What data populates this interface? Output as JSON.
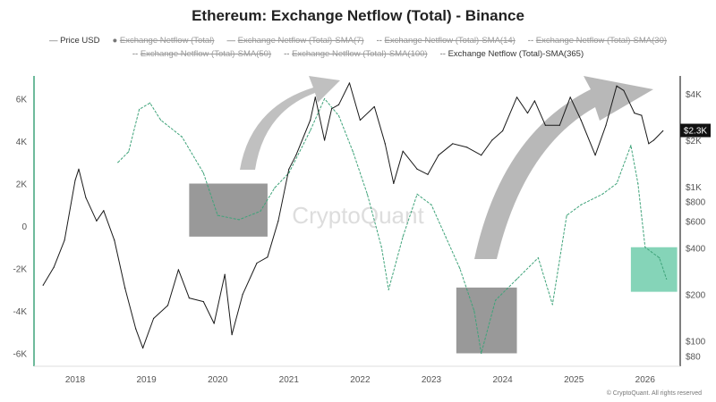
{
  "title": "Ethereum: Exchange Netflow (Total) - Binance",
  "legend": [
    {
      "label": "Price USD",
      "active": true,
      "marker": "line"
    },
    {
      "label": "Exchange Netflow (Total)",
      "active": false,
      "marker": "dot"
    },
    {
      "label": "Exchange Netflow (Total)-SMA(7)",
      "active": false,
      "marker": "line"
    },
    {
      "label": "Exchange Netflow (Total)-SMA(14)",
      "active": false,
      "marker": "dotted"
    },
    {
      "label": "Exchange Netflow (Total)-SMA(30)",
      "active": false,
      "marker": "dashed"
    },
    {
      "label": "Exchange Netflow (Total)-SMA(50)",
      "active": false,
      "marker": "dashed"
    },
    {
      "label": "Exchange Netflow (Total)-SMA(100)",
      "active": false,
      "marker": "dashed"
    },
    {
      "label": "Exchange Netflow (Total)-SMA(365)",
      "active": true,
      "marker": "dashed"
    }
  ],
  "watermark": "CryptoQuant",
  "footer": "© CryptoQuant. All rights reserved",
  "price_badge": "$2.3K",
  "colors": {
    "price": "#1a1a1a",
    "sma365": "#3fa37a",
    "box_gray": "#808080",
    "box_green": "#5cc6a0",
    "arrow": "#b0b0b0",
    "badge": "#111111"
  },
  "chart_data": {
    "type": "line",
    "title": "Ethereum: Exchange Netflow (Total) - Binance",
    "x_ticks": [
      "2018",
      "2019",
      "2020",
      "2021",
      "2022",
      "2023",
      "2024",
      "2025",
      "2026"
    ],
    "left_axis": {
      "ticks": [
        "6K",
        "4K",
        "2K",
        "0",
        "-2K",
        "-4K",
        "-6K"
      ],
      "tick_values": [
        6000,
        4000,
        2000,
        0,
        -2000,
        -4000,
        -6000
      ],
      "range": [
        -6500,
        7000
      ]
    },
    "right_axis": {
      "scale": "log",
      "ticks": [
        "$4K",
        "$2K",
        "$1K",
        "$800",
        "$600",
        "$400",
        "$200",
        "$100",
        "$80"
      ],
      "tick_values": [
        4000,
        2000,
        1000,
        800,
        600,
        400,
        200,
        100,
        80
      ]
    },
    "grid": false,
    "legend_position": "top",
    "series": [
      {
        "name": "Price USD",
        "axis": "right",
        "x": [
          2017.55,
          2017.7,
          2017.85,
          2018.0,
          2018.05,
          2018.15,
          2018.3,
          2018.4,
          2018.55,
          2018.7,
          2018.85,
          2018.95,
          2019.1,
          2019.3,
          2019.45,
          2019.6,
          2019.8,
          2019.95,
          2020.1,
          2020.2,
          2020.35,
          2020.55,
          2020.7,
          2020.85,
          2021.0,
          2021.1,
          2021.3,
          2021.37,
          2021.5,
          2021.6,
          2021.7,
          2021.85,
          2022.0,
          2022.2,
          2022.35,
          2022.47,
          2022.6,
          2022.8,
          2022.95,
          2023.1,
          2023.3,
          2023.5,
          2023.7,
          2023.85,
          2024.0,
          2024.2,
          2024.35,
          2024.45,
          2024.6,
          2024.8,
          2024.95,
          2025.1,
          2025.3,
          2025.45,
          2025.6,
          2025.7,
          2025.85,
          2025.95,
          2026.05,
          2026.12,
          2026.25
        ],
        "y": [
          230,
          300,
          450,
          1100,
          1300,
          850,
          600,
          700,
          450,
          220,
          120,
          90,
          140,
          170,
          290,
          190,
          180,
          130,
          270,
          110,
          200,
          320,
          350,
          600,
          1300,
          1600,
          2700,
          3800,
          2000,
          3200,
          3400,
          4700,
          2700,
          3300,
          1900,
          1050,
          1700,
          1300,
          1200,
          1600,
          1900,
          1800,
          1600,
          2000,
          2300,
          3800,
          3000,
          3600,
          2500,
          2500,
          3800,
          2700,
          1600,
          2500,
          4500,
          4200,
          3000,
          2900,
          1900,
          2000,
          2300
        ]
      },
      {
        "name": "Exchange Netflow (Total)-SMA(365)",
        "axis": "left",
        "x": [
          2018.6,
          2018.75,
          2018.9,
          2019.05,
          2019.2,
          2019.5,
          2019.8,
          2020.0,
          2020.3,
          2020.6,
          2020.8,
          2021.0,
          2021.3,
          2021.5,
          2021.7,
          2021.9,
          2022.1,
          2022.3,
          2022.4,
          2022.6,
          2022.8,
          2023.0,
          2023.2,
          2023.4,
          2023.6,
          2023.7,
          2023.9,
          2024.2,
          2024.5,
          2024.7,
          2024.9,
          2025.1,
          2025.4,
          2025.6,
          2025.8,
          2025.9,
          2026.0,
          2026.2,
          2026.3
        ],
        "y": [
          3000,
          3500,
          5500,
          5800,
          5000,
          4200,
          2500,
          500,
          300,
          700,
          1800,
          2500,
          4500,
          6000,
          5200,
          3500,
          1500,
          -1000,
          -3000,
          -500,
          1500,
          1000,
          -500,
          -2000,
          -4000,
          -6000,
          -3500,
          -2500,
          -1500,
          -3700,
          500,
          1000,
          1500,
          2000,
          3800,
          2000,
          -1000,
          -1500,
          -2500
        ]
      }
    ],
    "annotations": [
      {
        "type": "box",
        "color": "gray",
        "x": [
          2019.6,
          2020.7
        ],
        "y": [
          -500,
          2000
        ]
      },
      {
        "type": "box",
        "color": "gray",
        "x": [
          2023.35,
          2024.2
        ],
        "y": [
          -6000,
          -2900
        ]
      },
      {
        "type": "box",
        "color": "green",
        "x": [
          2025.8,
          2026.45
        ],
        "y": [
          -3100,
          -1000
        ]
      },
      {
        "type": "arrow",
        "color": "gray",
        "direction": "up-right"
      },
      {
        "type": "arrow",
        "color": "gray",
        "direction": "up-right"
      }
    ]
  }
}
